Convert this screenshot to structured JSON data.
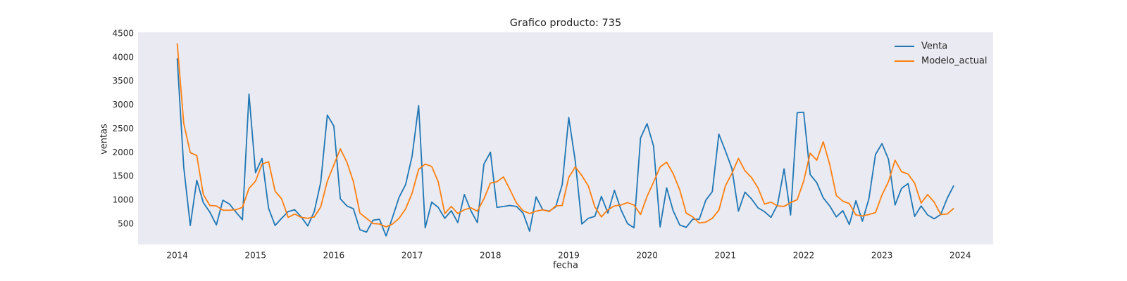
{
  "chart_data": {
    "type": "line",
    "title": "Grafico producto: 735",
    "x_label": "fecha",
    "y_label": "ventas",
    "x": [
      2014.0,
      2014.083,
      2014.167,
      2014.25,
      2014.333,
      2014.417,
      2014.5,
      2014.583,
      2014.667,
      2014.75,
      2014.833,
      2014.917,
      2015.0,
      2015.083,
      2015.167,
      2015.25,
      2015.333,
      2015.417,
      2015.5,
      2015.583,
      2015.667,
      2015.75,
      2015.833,
      2015.917,
      2016.0,
      2016.083,
      2016.167,
      2016.25,
      2016.333,
      2016.417,
      2016.5,
      2016.583,
      2016.667,
      2016.75,
      2016.833,
      2016.917,
      2017.0,
      2017.083,
      2017.167,
      2017.25,
      2017.333,
      2017.417,
      2017.5,
      2017.583,
      2017.667,
      2017.75,
      2017.833,
      2017.917,
      2018.0,
      2018.083,
      2018.167,
      2018.25,
      2018.333,
      2018.417,
      2018.5,
      2018.583,
      2018.667,
      2018.75,
      2018.833,
      2018.917,
      2019.0,
      2019.083,
      2019.167,
      2019.25,
      2019.333,
      2019.417,
      2019.5,
      2019.583,
      2019.667,
      2019.75,
      2019.833,
      2019.917,
      2020.0,
      2020.083,
      2020.167,
      2020.25,
      2020.333,
      2020.417,
      2020.5,
      2020.583,
      2020.667,
      2020.75,
      2020.833,
      2020.917,
      2021.0,
      2021.083,
      2021.167,
      2021.25,
      2021.333,
      2021.417,
      2021.5,
      2021.583,
      2021.667,
      2021.75,
      2021.833,
      2021.917,
      2022.0,
      2022.083,
      2022.167,
      2022.25,
      2022.333,
      2022.417,
      2022.5,
      2022.583,
      2022.667,
      2022.75,
      2022.833,
      2022.917,
      2023.0,
      2023.083,
      2023.167,
      2023.25,
      2023.333,
      2023.417,
      2023.5,
      2023.583,
      2023.667,
      2023.75,
      2023.833,
      2023.917
    ],
    "series": [
      {
        "name": "Venta",
        "color": "#1f77b4",
        "values": [
          3980,
          1700,
          470,
          1420,
          950,
          750,
          480,
          1000,
          920,
          750,
          590,
          3230,
          1580,
          1880,
          830,
          470,
          620,
          760,
          800,
          650,
          460,
          760,
          1380,
          2790,
          2560,
          1030,
          880,
          820,
          380,
          330,
          580,
          600,
          250,
          640,
          1060,
          1330,
          1930,
          2990,
          420,
          960,
          850,
          620,
          780,
          530,
          1120,
          780,
          530,
          1760,
          2010,
          850,
          870,
          890,
          870,
          730,
          350,
          1070,
          800,
          770,
          860,
          1330,
          2740,
          1830,
          500,
          620,
          660,
          1080,
          730,
          1210,
          800,
          510,
          420,
          2310,
          2610,
          2140,
          440,
          1260,
          780,
          480,
          430,
          600,
          600,
          1000,
          1180,
          2390,
          2040,
          1670,
          770,
          1170,
          1030,
          840,
          760,
          640,
          910,
          1660,
          690,
          2840,
          2850,
          1540,
          1370,
          1050,
          880,
          650,
          780,
          490,
          990,
          560,
          1030,
          1960,
          2190,
          1860,
          900,
          1250,
          1350,
          660,
          880,
          690,
          610,
          700,
          1040,
          1310
        ]
      },
      {
        "name": "Modelo_actual",
        "color": "#ff7f0e",
        "values": [
          4300,
          2620,
          2000,
          1940,
          1120,
          890,
          880,
          790,
          790,
          800,
          850,
          1250,
          1400,
          1760,
          1810,
          1190,
          1030,
          640,
          710,
          640,
          620,
          650,
          860,
          1400,
          1740,
          2080,
          1800,
          1390,
          730,
          620,
          510,
          500,
          440,
          500,
          620,
          820,
          1150,
          1650,
          1760,
          1710,
          1390,
          720,
          870,
          720,
          800,
          840,
          770,
          1030,
          1360,
          1390,
          1490,
          1220,
          940,
          780,
          720,
          770,
          800,
          760,
          880,
          890,
          1480,
          1700,
          1520,
          1300,
          860,
          650,
          800,
          880,
          900,
          950,
          900,
          700,
          1080,
          1380,
          1700,
          1800,
          1560,
          1220,
          730,
          650,
          520,
          540,
          620,
          790,
          1300,
          1560,
          1880,
          1620,
          1480,
          1260,
          920,
          960,
          880,
          870,
          950,
          1010,
          1400,
          1990,
          1840,
          2230,
          1750,
          1100,
          980,
          930,
          690,
          670,
          700,
          740,
          1110,
          1390,
          1840,
          1600,
          1550,
          1360,
          940,
          1120,
          960,
          700,
          710,
          830
        ]
      }
    ],
    "xlim": [
      2013.5,
      2024.42
    ],
    "ylim": [
      70,
      4530
    ],
    "xticks": [
      2014,
      2015,
      2016,
      2017,
      2018,
      2019,
      2020,
      2021,
      2022,
      2023,
      2024
    ],
    "yticks": [
      500,
      1000,
      1500,
      2000,
      2500,
      3000,
      3500,
      4000,
      4500
    ],
    "legend": "upper right",
    "background": "#eaeaf2"
  }
}
